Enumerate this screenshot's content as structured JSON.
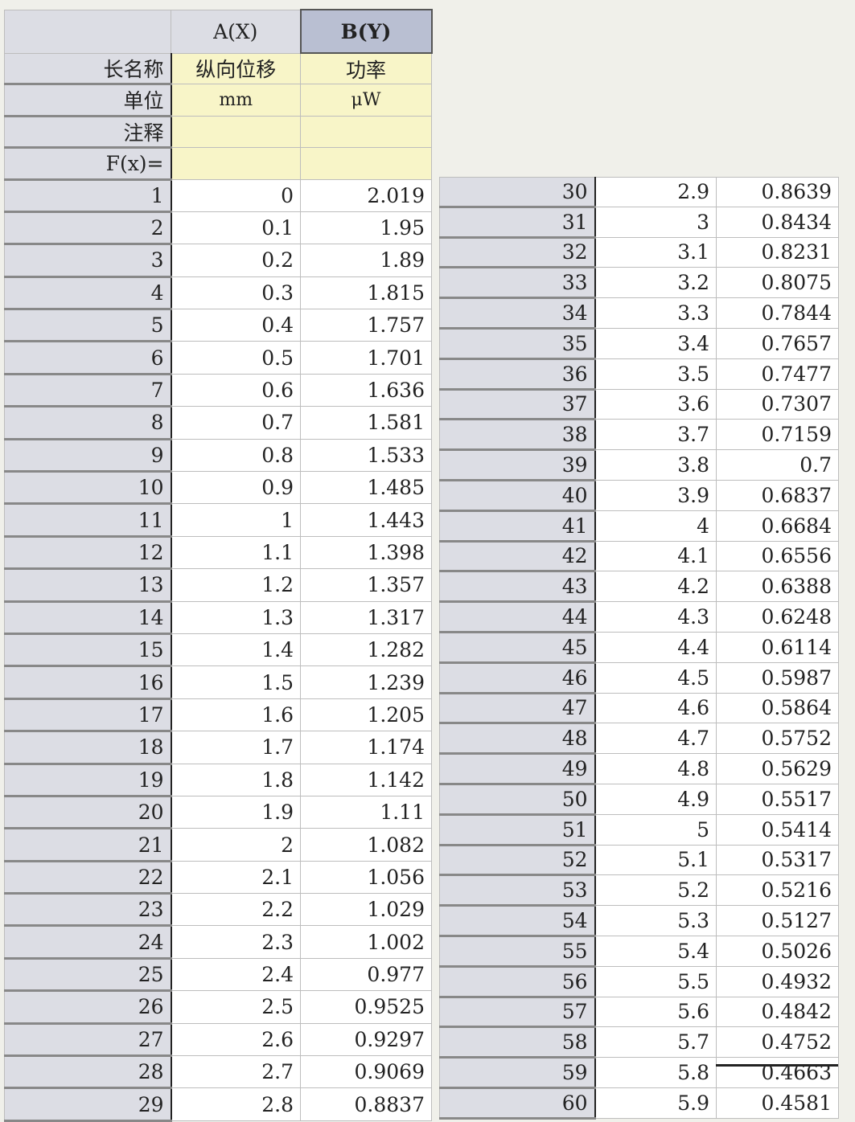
{
  "columns": {
    "a": "A(X)",
    "b": "B(Y)"
  },
  "meta_labels": {
    "long_name": "长名称",
    "unit": "单位",
    "comment": "注释",
    "fx": "F(x)="
  },
  "meta": {
    "a_long_name": "纵向位移",
    "b_long_name": "功率",
    "a_unit": "mm",
    "b_unit": "μW",
    "a_comment": "",
    "b_comment": "",
    "a_fx": "",
    "b_fx": ""
  },
  "rows": [
    {
      "n": "1",
      "x": "0",
      "y": "2.019"
    },
    {
      "n": "2",
      "x": "0.1",
      "y": "1.95"
    },
    {
      "n": "3",
      "x": "0.2",
      "y": "1.89"
    },
    {
      "n": "4",
      "x": "0.3",
      "y": "1.815"
    },
    {
      "n": "5",
      "x": "0.4",
      "y": "1.757"
    },
    {
      "n": "6",
      "x": "0.5",
      "y": "1.701"
    },
    {
      "n": "7",
      "x": "0.6",
      "y": "1.636"
    },
    {
      "n": "8",
      "x": "0.7",
      "y": "1.581"
    },
    {
      "n": "9",
      "x": "0.8",
      "y": "1.533"
    },
    {
      "n": "10",
      "x": "0.9",
      "y": "1.485"
    },
    {
      "n": "11",
      "x": "1",
      "y": "1.443"
    },
    {
      "n": "12",
      "x": "1.1",
      "y": "1.398"
    },
    {
      "n": "13",
      "x": "1.2",
      "y": "1.357"
    },
    {
      "n": "14",
      "x": "1.3",
      "y": "1.317"
    },
    {
      "n": "15",
      "x": "1.4",
      "y": "1.282"
    },
    {
      "n": "16",
      "x": "1.5",
      "y": "1.239"
    },
    {
      "n": "17",
      "x": "1.6",
      "y": "1.205"
    },
    {
      "n": "18",
      "x": "1.7",
      "y": "1.174"
    },
    {
      "n": "19",
      "x": "1.8",
      "y": "1.142"
    },
    {
      "n": "20",
      "x": "1.9",
      "y": "1.11"
    },
    {
      "n": "21",
      "x": "2",
      "y": "1.082"
    },
    {
      "n": "22",
      "x": "2.1",
      "y": "1.056"
    },
    {
      "n": "23",
      "x": "2.2",
      "y": "1.029"
    },
    {
      "n": "24",
      "x": "2.3",
      "y": "1.002"
    },
    {
      "n": "25",
      "x": "2.4",
      "y": "0.977"
    },
    {
      "n": "26",
      "x": "2.5",
      "y": "0.9525"
    },
    {
      "n": "27",
      "x": "2.6",
      "y": "0.9297"
    },
    {
      "n": "28",
      "x": "2.7",
      "y": "0.9069"
    },
    {
      "n": "29",
      "x": "2.8",
      "y": "0.8837"
    },
    {
      "n": "30",
      "x": "2.9",
      "y": "0.8639"
    },
    {
      "n": "31",
      "x": "3",
      "y": "0.8434"
    },
    {
      "n": "32",
      "x": "3.1",
      "y": "0.8231"
    },
    {
      "n": "33",
      "x": "3.2",
      "y": "0.8075"
    },
    {
      "n": "34",
      "x": "3.3",
      "y": "0.7844"
    },
    {
      "n": "35",
      "x": "3.4",
      "y": "0.7657"
    },
    {
      "n": "36",
      "x": "3.5",
      "y": "0.7477"
    },
    {
      "n": "37",
      "x": "3.6",
      "y": "0.7307"
    },
    {
      "n": "38",
      "x": "3.7",
      "y": "0.7159"
    },
    {
      "n": "39",
      "x": "3.8",
      "y": "0.7"
    },
    {
      "n": "40",
      "x": "3.9",
      "y": "0.6837"
    },
    {
      "n": "41",
      "x": "4",
      "y": "0.6684"
    },
    {
      "n": "42",
      "x": "4.1",
      "y": "0.6556"
    },
    {
      "n": "43",
      "x": "4.2",
      "y": "0.6388"
    },
    {
      "n": "44",
      "x": "4.3",
      "y": "0.6248"
    },
    {
      "n": "45",
      "x": "4.4",
      "y": "0.6114"
    },
    {
      "n": "46",
      "x": "4.5",
      "y": "0.5987"
    },
    {
      "n": "47",
      "x": "4.6",
      "y": "0.5864"
    },
    {
      "n": "48",
      "x": "4.7",
      "y": "0.5752"
    },
    {
      "n": "49",
      "x": "4.8",
      "y": "0.5629"
    },
    {
      "n": "50",
      "x": "4.9",
      "y": "0.5517"
    },
    {
      "n": "51",
      "x": "5",
      "y": "0.5414"
    },
    {
      "n": "52",
      "x": "5.1",
      "y": "0.5317"
    },
    {
      "n": "53",
      "x": "5.2",
      "y": "0.5216"
    },
    {
      "n": "54",
      "x": "5.3",
      "y": "0.5127"
    },
    {
      "n": "55",
      "x": "5.4",
      "y": "0.5026"
    },
    {
      "n": "56",
      "x": "5.5",
      "y": "0.4932"
    },
    {
      "n": "57",
      "x": "5.6",
      "y": "0.4842"
    },
    {
      "n": "58",
      "x": "5.7",
      "y": "0.4752"
    },
    {
      "n": "59",
      "x": "5.8",
      "y": "0.4663"
    },
    {
      "n": "60",
      "x": "5.9",
      "y": "0.4581"
    }
  ]
}
